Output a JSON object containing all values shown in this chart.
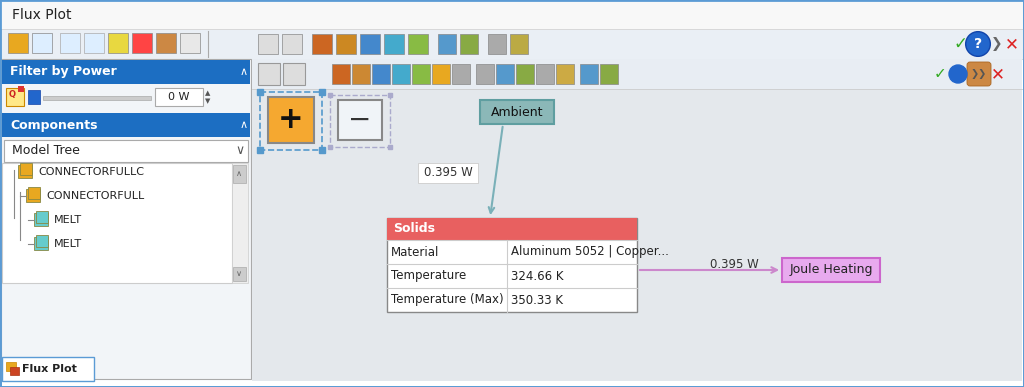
{
  "title": "Flux Plot",
  "bg_outer": "#ffffff",
  "border_color": "#5b9bd5",
  "toolbar_bg": "#e8eef4",
  "panel_bg": "#f2f5f8",
  "blue_header": "#1c6ec2",
  "blue_header_text": "#ffffff",
  "filter_label": "Filter by Power",
  "filter_value": "0 W",
  "components_label": "Components",
  "dropdown_label": "Model Tree",
  "tree_items": [
    "CONNECTORFULLC",
    "CONNECTORFULL",
    "MELT",
    "MELT"
  ],
  "tab_label": "Flux Plot",
  "ambient_label": "Ambient",
  "ambient_box_fill": "#8ab8b8",
  "ambient_box_border": "#5f9ea0",
  "solids_header": "Solids",
  "solids_header_bg": "#e86060",
  "solids_header_text": "#ffffff",
  "table_bg": "#ffffff",
  "table_border": "#aaaaaa",
  "table_rows": [
    [
      "Material",
      "Aluminum 5052 | Copper..."
    ],
    [
      "Temperature",
      "324.66 K"
    ],
    [
      "Temperature (Max)",
      "350.33 K"
    ]
  ],
  "joule_label": "Joule Heating",
  "joule_box_fill": "#e8aaee",
  "joule_box_border": "#cc66cc",
  "arrow_color_ambient": "#7ab0b8",
  "arrow_color_joule": "#cc88cc",
  "flux_label_ambient": "0.395 W",
  "flux_label_joule": "0.395 W",
  "canvas_bg": "#e4e8ec",
  "canvas_toolbar_bg": "#e0e8f0",
  "white_box_bg": "#f0f4f8"
}
